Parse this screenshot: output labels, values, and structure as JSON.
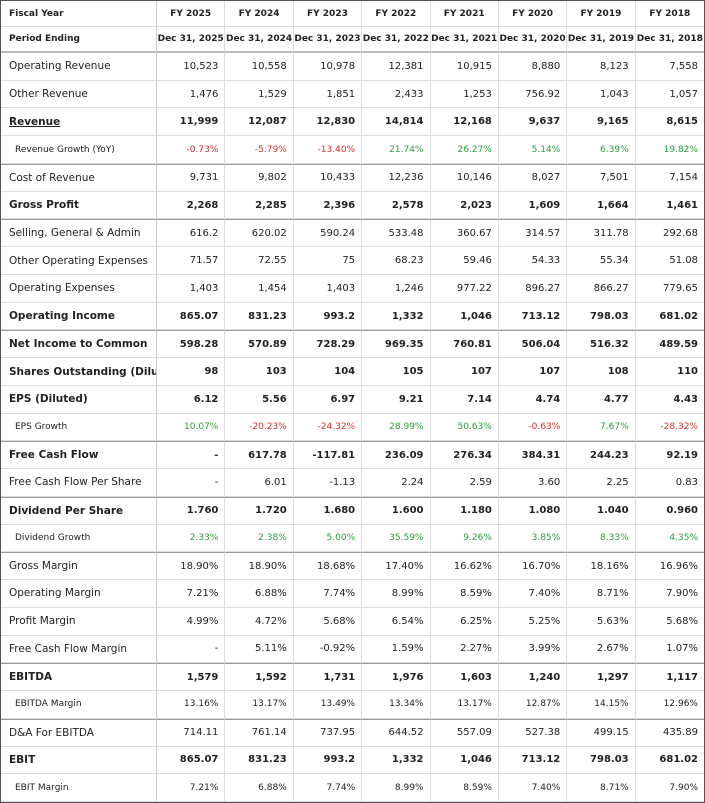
{
  "header": {
    "fiscal_year_label": "Fiscal Year",
    "years": [
      "FY 2025",
      "FY 2024",
      "FY 2023",
      "FY 2022",
      "FY 2021",
      "FY 2020",
      "FY 2019",
      "FY 2018"
    ],
    "period_label": "Period Ending",
    "periods": [
      "Dec 31, 2025",
      "Dec 31, 2024",
      "Dec 31, 2023",
      "Dec 31, 2022",
      "Dec 31, 2021",
      "Dec 31, 2020",
      "Dec 31, 2019",
      "Dec 31, 2018"
    ]
  },
  "rows": [
    {
      "label": "Operating Revenue",
      "values": [
        "10,523",
        "10,558",
        "10,978",
        "12,381",
        "10,915",
        "8,880",
        "8,123",
        "7,558"
      ]
    },
    {
      "label": "Other Revenue",
      "values": [
        "1,476",
        "1,529",
        "1,851",
        "2,433",
        "1,253",
        "756.92",
        "1,043",
        "1,057"
      ]
    },
    {
      "label": "Revenue",
      "values": [
        "11,999",
        "12,087",
        "12,830",
        "14,814",
        "12,168",
        "9,637",
        "9,165",
        "8,615"
      ]
    },
    {
      "label": "Revenue Growth (YoY)",
      "values": [
        "-0.73%",
        "-5.79%",
        "-13.40%",
        "21.74%",
        "26.27%",
        "5.14%",
        "6.39%",
        "19.82%"
      ]
    },
    {
      "label": "Cost of Revenue",
      "values": [
        "9,731",
        "9,802",
        "10,433",
        "12,236",
        "10,146",
        "8,027",
        "7,501",
        "7,154"
      ]
    },
    {
      "label": "Gross Profit",
      "values": [
        "2,268",
        "2,285",
        "2,396",
        "2,578",
        "2,023",
        "1,609",
        "1,664",
        "1,461"
      ]
    },
    {
      "label": "Selling, General & Admin",
      "values": [
        "616.2",
        "620.02",
        "590.24",
        "533.48",
        "360.67",
        "314.57",
        "311.78",
        "292.68"
      ]
    },
    {
      "label": "Other Operating Expenses",
      "values": [
        "71.57",
        "72.55",
        "75",
        "68.23",
        "59.46",
        "54.33",
        "55.34",
        "51.08"
      ]
    },
    {
      "label": "Operating Expenses",
      "values": [
        "1,403",
        "1,454",
        "1,403",
        "1,246",
        "977.22",
        "896.27",
        "866.27",
        "779.65"
      ]
    },
    {
      "label": "Operating Income",
      "values": [
        "865.07",
        "831.23",
        "993.2",
        "1,332",
        "1,046",
        "713.12",
        "798.03",
        "681.02"
      ]
    },
    {
      "label": "Net Income to Common",
      "values": [
        "598.28",
        "570.89",
        "728.29",
        "969.35",
        "760.81",
        "506.04",
        "516.32",
        "489.59"
      ]
    },
    {
      "label": "Shares Outstanding (Diluted)",
      "values": [
        "98",
        "103",
        "104",
        "105",
        "107",
        "107",
        "108",
        "110"
      ]
    },
    {
      "label": "EPS (Diluted)",
      "values": [
        "6.12",
        "5.56",
        "6.97",
        "9.21",
        "7.14",
        "4.74",
        "4.77",
        "4.43"
      ]
    },
    {
      "label": "EPS Growth",
      "values": [
        "10.07%",
        "-20.23%",
        "-24.32%",
        "28.99%",
        "50.63%",
        "-0.63%",
        "7.67%",
        "-28.32%"
      ]
    },
    {
      "label": "Free Cash Flow",
      "values": [
        "-",
        "617.78",
        "-117.81",
        "236.09",
        "276.34",
        "384.31",
        "244.23",
        "92.19"
      ]
    },
    {
      "label": "Free Cash Flow Per Share",
      "values": [
        "-",
        "6.01",
        "-1.13",
        "2.24",
        "2.59",
        "3.60",
        "2.25",
        "0.83"
      ]
    },
    {
      "label": "Dividend Per Share",
      "values": [
        "1.760",
        "1.720",
        "1.680",
        "1.600",
        "1.180",
        "1.080",
        "1.040",
        "0.960"
      ]
    },
    {
      "label": "Dividend Growth",
      "values": [
        "2.33%",
        "2.38%",
        "5.00%",
        "35.59%",
        "9.26%",
        "3.85%",
        "8.33%",
        "4.35%"
      ]
    },
    {
      "label": "Gross Margin",
      "values": [
        "18.90%",
        "18.90%",
        "18.68%",
        "17.40%",
        "16.62%",
        "16.70%",
        "18.16%",
        "16.96%"
      ]
    },
    {
      "label": "Operating Margin",
      "values": [
        "7.21%",
        "6.88%",
        "7.74%",
        "8.99%",
        "8.59%",
        "7.40%",
        "8.71%",
        "7.90%"
      ]
    },
    {
      "label": "Profit Margin",
      "values": [
        "4.99%",
        "4.72%",
        "5.68%",
        "6.54%",
        "6.25%",
        "5.25%",
        "5.63%",
        "5.68%"
      ]
    },
    {
      "label": "Free Cash Flow Margin",
      "values": [
        "-",
        "5.11%",
        "-0.92%",
        "1.59%",
        "2.27%",
        "3.99%",
        "2.67%",
        "1.07%"
      ]
    },
    {
      "label": "EBITDA",
      "values": [
        "1,579",
        "1,592",
        "1,731",
        "1,976",
        "1,603",
        "1,240",
        "1,297",
        "1,117"
      ]
    },
    {
      "label": "EBITDA Margin",
      "values": [
        "13.16%",
        "13.17%",
        "13.49%",
        "13.34%",
        "13.17%",
        "12.87%",
        "14.15%",
        "12.96%"
      ]
    },
    {
      "label": "D&A For EBITDA",
      "values": [
        "714.11",
        "761.14",
        "737.95",
        "644.52",
        "557.09",
        "527.38",
        "499.15",
        "435.89"
      ]
    },
    {
      "label": "EBIT",
      "values": [
        "865.07",
        "831.23",
        "993.2",
        "1,332",
        "1,046",
        "713.12",
        "798.03",
        "681.02"
      ]
    },
    {
      "label": "EBIT Margin",
      "values": [
        "7.21%",
        "6.88%",
        "7.74%",
        "8.99%",
        "8.59%",
        "7.40%",
        "8.71%",
        "7.90%"
      ]
    }
  ]
}
